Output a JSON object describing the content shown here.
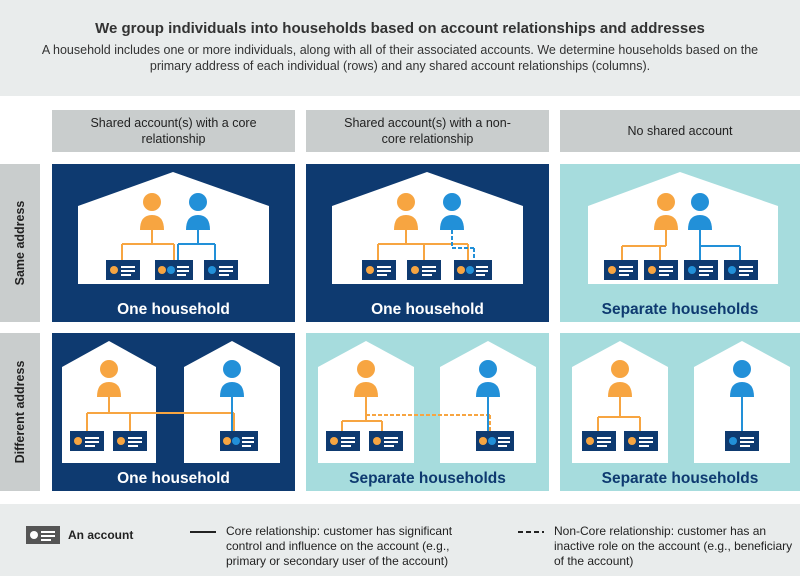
{
  "header": {
    "title": "We group individuals into households based on account relationships and addresses",
    "description": "A household includes one or more individuals, along with all of their associated accounts. We determine households based on the primary address of each individual (rows) and any shared account relationships (columns)."
  },
  "columns": [
    "Shared account(s) with a core relationship",
    "Shared account(s) with a non-core relationship",
    "No shared account"
  ],
  "rows": [
    "Same address",
    "Different address"
  ],
  "cells": {
    "same_core": "One household",
    "same_noncore": "One household",
    "same_none": "Separate households",
    "diff_core": "One household",
    "diff_noncore": "Separate households",
    "diff_none": "Separate households"
  },
  "legend": {
    "account": "An account",
    "core": "Core relationship: customer has significant control and influence on the account (e.g., primary or secondary user of the account)",
    "noncore": "Non-Core relationship: customer has an inactive role on the account (e.g., beneficiary of the account)"
  },
  "colors": {
    "dark_blue": "#0e3a70",
    "light_teal": "#a6dcdd",
    "orange_person": "#f7a541",
    "blue_person": "#2290d8",
    "header_gray": "#c9cdcd"
  }
}
